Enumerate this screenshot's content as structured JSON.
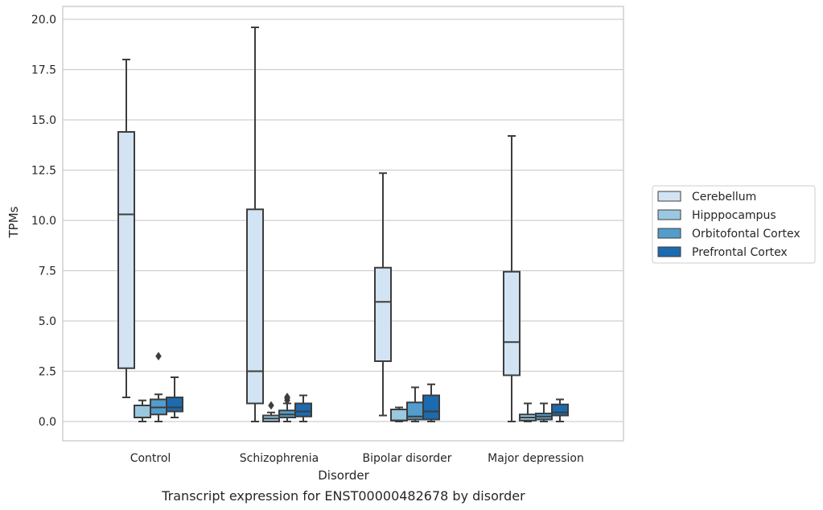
{
  "chart_data": {
    "type": "box",
    "caption": "Transcript expression for ENST00000482678 by disorder",
    "xlabel": "Disorder",
    "ylabel": "TPMs",
    "ylim": [
      -0.9,
      20.6
    ],
    "yticks": [
      0.0,
      2.5,
      5.0,
      7.5,
      10.0,
      12.5,
      15.0,
      17.5,
      20.0
    ],
    "ytick_labels": [
      "0.0",
      "2.5",
      "5.0",
      "7.5",
      "10.0",
      "12.5",
      "15.0",
      "17.5",
      "20.0"
    ],
    "grid": true,
    "legend_position": "right",
    "categories": [
      "Control",
      "Schizophrenia",
      "Bipolar disorder",
      "Major depression"
    ],
    "series": [
      {
        "name": "Cerebellum",
        "color": "#d2e3f3",
        "boxes": [
          {
            "whislo": 1.2,
            "q1": 2.65,
            "med": 10.3,
            "q3": 14.4,
            "whishi": 18.0,
            "fliers": []
          },
          {
            "whislo": 0.0,
            "q1": 0.9,
            "med": 2.5,
            "q3": 10.55,
            "whishi": 19.6,
            "fliers": []
          },
          {
            "whislo": 0.3,
            "q1": 3.0,
            "med": 5.95,
            "q3": 7.65,
            "whishi": 12.35,
            "fliers": []
          },
          {
            "whislo": 0.0,
            "q1": 2.3,
            "med": 3.95,
            "q3": 7.45,
            "whishi": 14.2,
            "fliers": []
          }
        ]
      },
      {
        "name": "Hipppocampus",
        "color": "#9ac8e0",
        "boxes": [
          {
            "whislo": 0.0,
            "q1": 0.2,
            "med": 0.2,
            "q3": 0.8,
            "whishi": 1.05,
            "fliers": []
          },
          {
            "whislo": 0.0,
            "q1": 0.0,
            "med": 0.15,
            "q3": 0.3,
            "whishi": 0.45,
            "fliers": [
              0.8
            ]
          },
          {
            "whislo": 0.0,
            "q1": 0.05,
            "med": 0.05,
            "q3": 0.6,
            "whishi": 0.7,
            "fliers": []
          },
          {
            "whislo": 0.0,
            "q1": 0.05,
            "med": 0.2,
            "q3": 0.35,
            "whishi": 0.9,
            "fliers": []
          }
        ]
      },
      {
        "name": "Orbitofontal Cortex",
        "color": "#529dcc",
        "boxes": [
          {
            "whislo": 0.0,
            "q1": 0.35,
            "med": 0.7,
            "q3": 1.1,
            "whishi": 1.35,
            "fliers": [
              3.25
            ]
          },
          {
            "whislo": 0.0,
            "q1": 0.2,
            "med": 0.35,
            "q3": 0.55,
            "whishi": 0.9,
            "fliers": [
              1.05,
              1.15,
              1.22
            ]
          },
          {
            "whislo": 0.0,
            "q1": 0.1,
            "med": 0.25,
            "q3": 0.95,
            "whishi": 1.7,
            "fliers": []
          },
          {
            "whislo": 0.0,
            "q1": 0.1,
            "med": 0.25,
            "q3": 0.4,
            "whishi": 0.9,
            "fliers": []
          }
        ]
      },
      {
        "name": "Prefrontal Cortex",
        "color": "#1c6aaf",
        "boxes": [
          {
            "whislo": 0.2,
            "q1": 0.5,
            "med": 0.7,
            "q3": 1.2,
            "whishi": 2.2,
            "fliers": []
          },
          {
            "whislo": 0.0,
            "q1": 0.25,
            "med": 0.5,
            "q3": 0.9,
            "whishi": 1.3,
            "fliers": []
          },
          {
            "whislo": 0.0,
            "q1": 0.1,
            "med": 0.5,
            "q3": 1.3,
            "whishi": 1.85,
            "fliers": []
          },
          {
            "whislo": 0.0,
            "q1": 0.3,
            "med": 0.45,
            "q3": 0.85,
            "whishi": 1.1,
            "fliers": []
          }
        ]
      }
    ],
    "colors": {
      "grid": "#cfcfcf",
      "frame": "#cfcfcf",
      "box_edge": "#3d3d3d"
    }
  }
}
